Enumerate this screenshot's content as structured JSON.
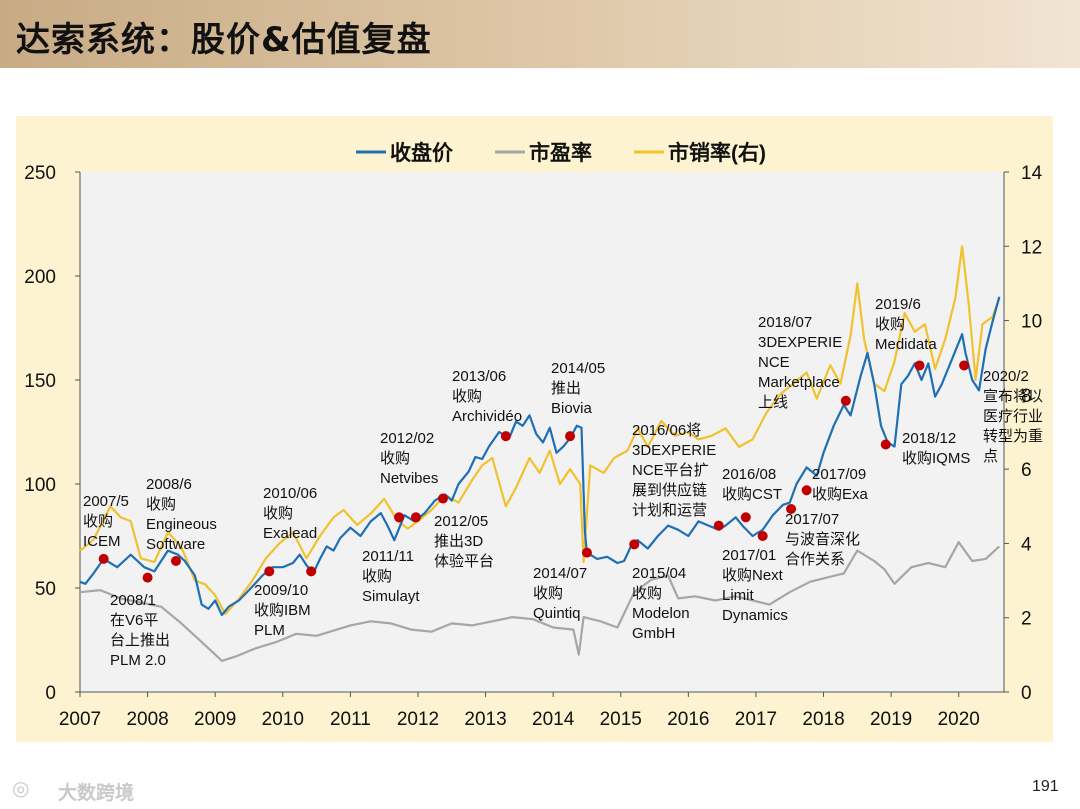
{
  "header": {
    "title": "达索系统：股价&估值复盘"
  },
  "footer": {
    "brand": "大数跨境",
    "page_number": "191"
  },
  "colors": {
    "price": "#1f6fb5",
    "pe": "#a6a6a6",
    "ps": "#f2c12e",
    "marker": "#c00000",
    "plot_bg": "#f2f2f2",
    "panel_bg": "#fdf3d0"
  },
  "chart_data": {
    "type": "line",
    "x_ticks": [
      "2007",
      "2008",
      "2009",
      "2010",
      "2011",
      "2012",
      "2013",
      "2014",
      "2015",
      "2016",
      "2017",
      "2018",
      "2019",
      "2020"
    ],
    "xlim": [
      2007.0,
      2020.67
    ],
    "ylim_left": [
      0,
      250
    ],
    "ylim_right": [
      0,
      14
    ],
    "y_ticks_left": [
      "0",
      "50",
      "100",
      "150",
      "200",
      "250"
    ],
    "y_ticks_right": [
      "0",
      "2",
      "4",
      "6",
      "8",
      "10",
      "12",
      "14"
    ],
    "legend": [
      "收盘价",
      "市盈率",
      "市销率(右)"
    ],
    "legend_position": "top",
    "grid": false,
    "series": [
      {
        "name": "收盘价",
        "axis": "left",
        "color": "#1f6fb5",
        "points": [
          [
            2007.0,
            53
          ],
          [
            2007.08,
            52
          ],
          [
            2007.2,
            57
          ],
          [
            2007.35,
            64
          ],
          [
            2007.55,
            60
          ],
          [
            2007.75,
            66
          ],
          [
            2007.95,
            60
          ],
          [
            2008.1,
            58
          ],
          [
            2008.3,
            68
          ],
          [
            2008.45,
            66
          ],
          [
            2008.55,
            63
          ],
          [
            2008.7,
            56
          ],
          [
            2008.8,
            42
          ],
          [
            2008.9,
            40
          ],
          [
            2009.0,
            44
          ],
          [
            2009.1,
            37
          ],
          [
            2009.2,
            41
          ],
          [
            2009.35,
            44
          ],
          [
            2009.5,
            49
          ],
          [
            2009.7,
            56
          ],
          [
            2009.85,
            60
          ],
          [
            2010.0,
            60
          ],
          [
            2010.15,
            62
          ],
          [
            2010.25,
            66
          ],
          [
            2010.35,
            61
          ],
          [
            2010.45,
            57
          ],
          [
            2010.55,
            64
          ],
          [
            2010.65,
            70
          ],
          [
            2010.75,
            68
          ],
          [
            2010.85,
            74
          ],
          [
            2011.0,
            79
          ],
          [
            2011.15,
            75
          ],
          [
            2011.3,
            82
          ],
          [
            2011.45,
            86
          ],
          [
            2011.55,
            80
          ],
          [
            2011.65,
            73
          ],
          [
            2011.7,
            77
          ],
          [
            2011.8,
            85
          ],
          [
            2011.95,
            82
          ],
          [
            2012.1,
            86
          ],
          [
            2012.25,
            92
          ],
          [
            2012.4,
            95
          ],
          [
            2012.5,
            92
          ],
          [
            2012.6,
            100
          ],
          [
            2012.75,
            106
          ],
          [
            2012.85,
            113
          ],
          [
            2012.95,
            112
          ],
          [
            2013.05,
            118
          ],
          [
            2013.2,
            125
          ],
          [
            2013.35,
            122
          ],
          [
            2013.45,
            130
          ],
          [
            2013.55,
            128
          ],
          [
            2013.65,
            133
          ],
          [
            2013.75,
            124
          ],
          [
            2013.85,
            120
          ],
          [
            2013.95,
            127
          ],
          [
            2014.05,
            115
          ],
          [
            2014.15,
            118
          ],
          [
            2014.25,
            122
          ],
          [
            2014.35,
            128
          ],
          [
            2014.42,
            127
          ],
          [
            2014.47,
            77
          ],
          [
            2014.5,
            67
          ],
          [
            2014.65,
            64
          ],
          [
            2014.8,
            65
          ],
          [
            2014.95,
            62
          ],
          [
            2015.05,
            63
          ],
          [
            2015.15,
            70
          ],
          [
            2015.25,
            73
          ],
          [
            2015.4,
            69
          ],
          [
            2015.55,
            75
          ],
          [
            2015.7,
            80
          ],
          [
            2015.85,
            78
          ],
          [
            2016.0,
            75
          ],
          [
            2016.15,
            82
          ],
          [
            2016.3,
            80
          ],
          [
            2016.45,
            78
          ],
          [
            2016.55,
            80
          ],
          [
            2016.7,
            84
          ],
          [
            2016.8,
            80
          ],
          [
            2016.95,
            75
          ],
          [
            2017.1,
            78
          ],
          [
            2017.25,
            85
          ],
          [
            2017.4,
            90
          ],
          [
            2017.5,
            91
          ],
          [
            2017.6,
            100
          ],
          [
            2017.75,
            108
          ],
          [
            2017.9,
            104
          ],
          [
            2018.0,
            115
          ],
          [
            2018.15,
            128
          ],
          [
            2018.3,
            138
          ],
          [
            2018.4,
            133
          ],
          [
            2018.55,
            152
          ],
          [
            2018.65,
            163
          ],
          [
            2018.75,
            148
          ],
          [
            2018.85,
            128
          ],
          [
            2018.95,
            120
          ],
          [
            2019.05,
            118
          ],
          [
            2019.15,
            148
          ],
          [
            2019.25,
            152
          ],
          [
            2019.35,
            158
          ],
          [
            2019.45,
            150
          ],
          [
            2019.55,
            158
          ],
          [
            2019.65,
            142
          ],
          [
            2019.75,
            148
          ],
          [
            2019.9,
            160
          ],
          [
            2020.05,
            172
          ],
          [
            2020.1,
            163
          ],
          [
            2020.2,
            150
          ],
          [
            2020.3,
            145
          ],
          [
            2020.4,
            165
          ],
          [
            2020.5,
            178
          ],
          [
            2020.6,
            190
          ]
        ]
      },
      {
        "name": "市盈率",
        "axis": "left",
        "color": "#a6a6a6",
        "points": [
          [
            2007.0,
            48
          ],
          [
            2007.3,
            49
          ],
          [
            2007.6,
            45
          ],
          [
            2007.9,
            43
          ],
          [
            2008.2,
            41
          ],
          [
            2008.5,
            33
          ],
          [
            2008.8,
            24
          ],
          [
            2009.0,
            18
          ],
          [
            2009.1,
            15
          ],
          [
            2009.3,
            17
          ],
          [
            2009.6,
            21
          ],
          [
            2009.9,
            24
          ],
          [
            2010.2,
            28
          ],
          [
            2010.5,
            27
          ],
          [
            2010.8,
            30
          ],
          [
            2011.0,
            32
          ],
          [
            2011.3,
            34
          ],
          [
            2011.6,
            33
          ],
          [
            2011.9,
            30
          ],
          [
            2012.2,
            29
          ],
          [
            2012.5,
            33
          ],
          [
            2012.8,
            32
          ],
          [
            2013.1,
            34
          ],
          [
            2013.4,
            36
          ],
          [
            2013.7,
            35
          ],
          [
            2014.0,
            31
          ],
          [
            2014.3,
            30
          ],
          [
            2014.38,
            18
          ],
          [
            2014.45,
            36
          ],
          [
            2014.7,
            34
          ],
          [
            2014.95,
            31
          ],
          [
            2015.2,
            48
          ],
          [
            2015.45,
            54
          ],
          [
            2015.7,
            56
          ],
          [
            2015.85,
            45
          ],
          [
            2016.1,
            46
          ],
          [
            2016.4,
            44
          ],
          [
            2016.7,
            46
          ],
          [
            2016.95,
            44
          ],
          [
            2017.2,
            42
          ],
          [
            2017.5,
            48
          ],
          [
            2017.8,
            53
          ],
          [
            2018.05,
            55
          ],
          [
            2018.3,
            57
          ],
          [
            2018.5,
            68
          ],
          [
            2018.75,
            63
          ],
          [
            2018.9,
            59
          ],
          [
            2019.05,
            52
          ],
          [
            2019.3,
            60
          ],
          [
            2019.55,
            62
          ],
          [
            2019.8,
            60
          ],
          [
            2020.0,
            72
          ],
          [
            2020.2,
            63
          ],
          [
            2020.4,
            64
          ],
          [
            2020.6,
            70
          ]
        ]
      },
      {
        "name": "市销率(右)",
        "axis": "right",
        "color": "#f2c12e",
        "points": [
          [
            2007.0,
            3.8
          ],
          [
            2007.2,
            4.1
          ],
          [
            2007.45,
            5.0
          ],
          [
            2007.6,
            4.7
          ],
          [
            2007.75,
            4.6
          ],
          [
            2007.9,
            3.6
          ],
          [
            2008.1,
            3.5
          ],
          [
            2008.3,
            4.3
          ],
          [
            2008.5,
            3.9
          ],
          [
            2008.7,
            3.0
          ],
          [
            2008.85,
            2.9
          ],
          [
            2009.0,
            2.6
          ],
          [
            2009.15,
            2.1
          ],
          [
            2009.35,
            2.5
          ],
          [
            2009.55,
            3.0
          ],
          [
            2009.75,
            3.6
          ],
          [
            2009.95,
            4.0
          ],
          [
            2010.15,
            4.3
          ],
          [
            2010.35,
            3.6
          ],
          [
            2010.55,
            4.2
          ],
          [
            2010.75,
            4.7
          ],
          [
            2010.9,
            4.9
          ],
          [
            2011.1,
            4.5
          ],
          [
            2011.3,
            4.8
          ],
          [
            2011.5,
            5.2
          ],
          [
            2011.7,
            4.6
          ],
          [
            2011.85,
            4.4
          ],
          [
            2012.0,
            4.6
          ],
          [
            2012.2,
            4.9
          ],
          [
            2012.4,
            5.3
          ],
          [
            2012.6,
            5.1
          ],
          [
            2012.8,
            5.7
          ],
          [
            2012.95,
            6.1
          ],
          [
            2013.1,
            6.3
          ],
          [
            2013.3,
            5.0
          ],
          [
            2013.45,
            5.5
          ],
          [
            2013.65,
            6.3
          ],
          [
            2013.8,
            5.9
          ],
          [
            2013.95,
            6.5
          ],
          [
            2014.1,
            5.6
          ],
          [
            2014.25,
            6.0
          ],
          [
            2014.4,
            5.6
          ],
          [
            2014.45,
            3.5
          ],
          [
            2014.55,
            6.1
          ],
          [
            2014.75,
            5.9
          ],
          [
            2014.9,
            6.3
          ],
          [
            2015.1,
            6.5
          ],
          [
            2015.25,
            7.1
          ],
          [
            2015.4,
            6.6
          ],
          [
            2015.6,
            7.3
          ],
          [
            2015.8,
            6.9
          ],
          [
            2016.0,
            7.0
          ],
          [
            2016.15,
            6.8
          ],
          [
            2016.35,
            6.9
          ],
          [
            2016.55,
            7.1
          ],
          [
            2016.75,
            6.6
          ],
          [
            2016.95,
            6.8
          ],
          [
            2017.15,
            7.5
          ],
          [
            2017.35,
            8.0
          ],
          [
            2017.55,
            8.3
          ],
          [
            2017.75,
            8.6
          ],
          [
            2017.9,
            7.9
          ],
          [
            2018.1,
            8.8
          ],
          [
            2018.25,
            8.3
          ],
          [
            2018.4,
            9.6
          ],
          [
            2018.5,
            11.0
          ],
          [
            2018.6,
            9.5
          ],
          [
            2018.75,
            8.3
          ],
          [
            2018.9,
            8.1
          ],
          [
            2019.05,
            8.9
          ],
          [
            2019.2,
            10.2
          ],
          [
            2019.35,
            9.7
          ],
          [
            2019.5,
            9.9
          ],
          [
            2019.65,
            8.7
          ],
          [
            2019.8,
            9.5
          ],
          [
            2019.95,
            10.6
          ],
          [
            2020.05,
            12.0
          ],
          [
            2020.15,
            10.4
          ],
          [
            2020.25,
            8.4
          ],
          [
            2020.35,
            9.9
          ],
          [
            2020.5,
            10.1
          ],
          [
            2020.6,
            10.6
          ]
        ]
      }
    ],
    "events": [
      {
        "x": 2007.35,
        "y": 64,
        "label": [
          "2007/5",
          "收购",
          "ICEM"
        ]
      },
      {
        "x": 2008.0,
        "y": 55,
        "label": [
          "2008/1",
          "在V6平",
          "台上推出",
          "PLM 2.0"
        ]
      },
      {
        "x": 2008.42,
        "y": 63,
        "label": [
          "2008/6",
          "收购",
          "Engineous",
          "Software"
        ]
      },
      {
        "x": 2009.8,
        "y": 58,
        "label": [
          "2009/10",
          "收购IBM",
          "PLM"
        ]
      },
      {
        "x": 2010.42,
        "y": 58,
        "label": [
          "2010/06",
          "收购",
          "Exalead"
        ]
      },
      {
        "x": 2011.72,
        "y": 84,
        "label": [
          "2011/11",
          "收购",
          "Simulayt"
        ]
      },
      {
        "x": 2011.97,
        "y": 84,
        "label": [
          "2012/02",
          "收购",
          "Netvibes"
        ]
      },
      {
        "x": 2012.37,
        "y": 93,
        "label": [
          "2012/05",
          "推出3D",
          "体验平台"
        ]
      },
      {
        "x": 2013.3,
        "y": 123,
        "label": [
          "2013/06",
          "收购",
          "Archividéo"
        ]
      },
      {
        "x": 2014.25,
        "y": 123,
        "label": [
          "2014/05",
          "推出",
          "Biovia"
        ]
      },
      {
        "x": 2014.5,
        "y": 67,
        "label": [
          "2014/07",
          "收购",
          "Quintiq"
        ]
      },
      {
        "x": 2015.2,
        "y": 71,
        "label": [
          "2015/04",
          "收购",
          "Modelon",
          "GmbH"
        ]
      },
      {
        "x": 2016.45,
        "y": 80,
        "label": [
          "2016/06将",
          "3DEXPERIE",
          "NCE平台扩",
          "展到供应链",
          "计划和运营"
        ]
      },
      {
        "x": 2016.85,
        "y": 84,
        "label": [
          "2016/08",
          "收购CST"
        ]
      },
      {
        "x": 2017.1,
        "y": 75,
        "label": [
          "2017/01",
          "收购Next",
          "Limit",
          "Dynamics"
        ]
      },
      {
        "x": 2017.52,
        "y": 88,
        "label": [
          "2017/07",
          "与波音深化",
          "合作关系"
        ]
      },
      {
        "x": 2017.75,
        "y": 97,
        "label": [
          "2017/09",
          "收购Exa"
        ]
      },
      {
        "x": 2018.33,
        "y": 140,
        "label": [
          "2018/07",
          "3DEXPERIE",
          "NCE",
          "Marketplace",
          "上线"
        ]
      },
      {
        "x": 2018.92,
        "y": 119,
        "label": [
          "2018/12",
          "收购IQMS"
        ]
      },
      {
        "x": 2019.42,
        "y": 157,
        "label": [
          "2019/6",
          "收购",
          "Medidata"
        ]
      },
      {
        "x": 2020.08,
        "y": 157,
        "label": [
          "2020/2",
          "宣布将以",
          "医疗行业",
          "转型为重",
          "点"
        ]
      }
    ]
  }
}
